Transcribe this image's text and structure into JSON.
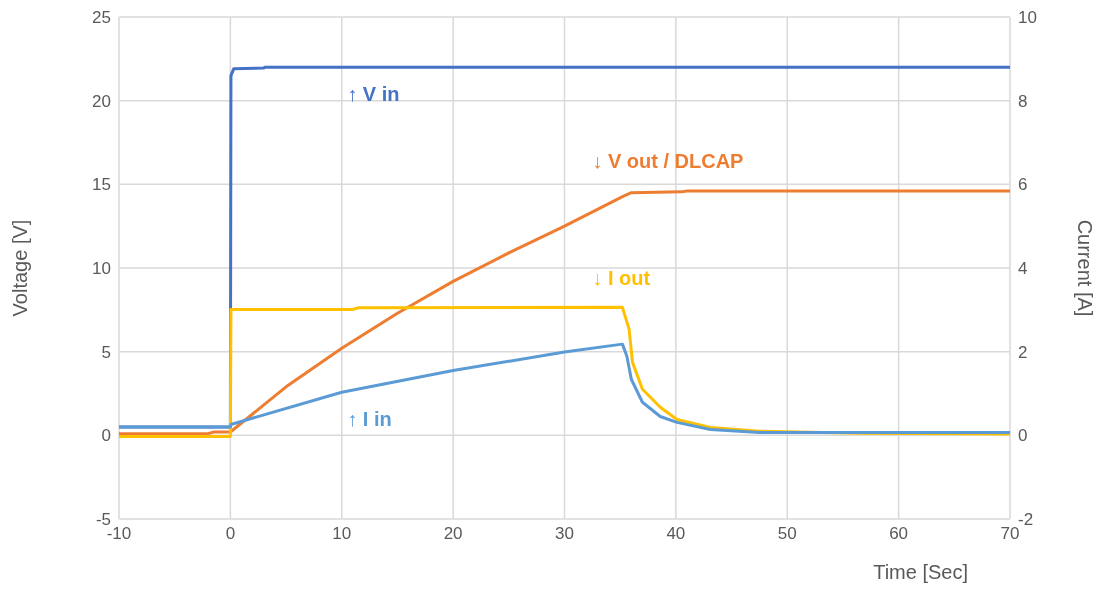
{
  "chart_data": {
    "type": "line",
    "xlabel": "Time [Sec]",
    "ylabel": "Voltage [V]",
    "y2label": "Current [A]",
    "xlim": [
      -10,
      70
    ],
    "xticks": [
      -10,
      0,
      10,
      20,
      30,
      40,
      50,
      60,
      70
    ],
    "ylim": [
      -5,
      25
    ],
    "yticks": [
      -5,
      0,
      5,
      10,
      15,
      20,
      25
    ],
    "y2lim": [
      -2,
      10
    ],
    "y2ticks": [
      -2,
      0,
      2,
      4,
      6,
      8,
      10
    ],
    "grid": true,
    "legend": false,
    "marker": "none",
    "line_style": "solid",
    "series": [
      {
        "name": "↑ V in",
        "color": "#4472c4",
        "x": [
          -10,
          0,
          0.05,
          0.3,
          3,
          3.1,
          70
        ],
        "values": [
          0.5,
          0.5,
          21.5,
          21.9,
          21.95,
          22,
          22
        ]
      },
      {
        "name": "↓ V out / DLCAP",
        "color": "#ed7d31",
        "x": [
          -10,
          -2,
          -1.5,
          0,
          5,
          10,
          15,
          20,
          25,
          30,
          35.3,
          36,
          40.5,
          41,
          70
        ],
        "values": [
          0.1,
          0.1,
          0.2,
          0.2,
          2.9,
          5.2,
          7.3,
          9.2,
          10.9,
          12.5,
          14.3,
          14.5,
          14.55,
          14.6,
          14.6
        ]
      },
      {
        "name": "↓ I out",
        "color": "#ffc000",
        "axis": "y2",
        "x": [
          -10,
          0,
          0.05,
          11,
          11.5,
          35.2,
          35.8,
          36.1,
          37,
          38.6,
          40.1,
          43.1,
          47.5,
          56.5,
          70
        ],
        "values": [
          -0.03,
          -0.03,
          3.01,
          3.01,
          3.05,
          3.06,
          2.54,
          1.75,
          1.1,
          0.67,
          0.38,
          0.19,
          0.1,
          0.05,
          0.03
        ]
      },
      {
        "name": "↑ I in",
        "color": "#5b9bd5",
        "axis": "y2",
        "x": [
          -10,
          0,
          0.05,
          10,
          20,
          30,
          35.2,
          35.6,
          36,
          37,
          38.6,
          40.1,
          43.1,
          47.5,
          70
        ],
        "values": [
          0.2,
          0.2,
          0.26,
          1.03,
          1.55,
          1.99,
          2.18,
          1.89,
          1.34,
          0.79,
          0.45,
          0.31,
          0.14,
          0.07,
          0.07
        ]
      }
    ]
  }
}
